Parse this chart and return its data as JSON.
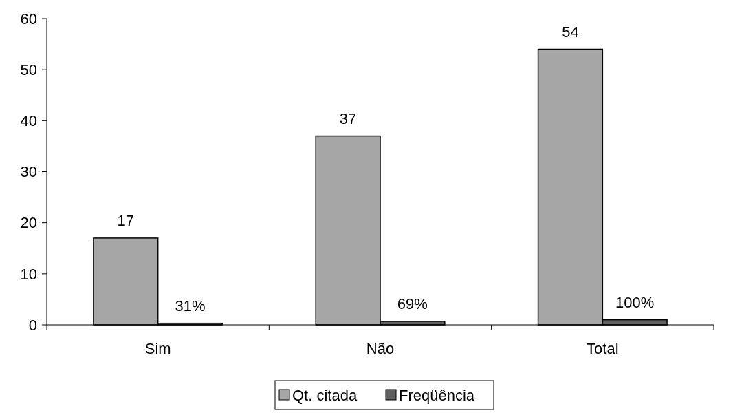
{
  "chart_data": {
    "type": "bar",
    "categories": [
      "Sim",
      "Não",
      "Total"
    ],
    "series": [
      {
        "name": "Qt. citada",
        "color": "#a6a6a6",
        "values": [
          17,
          37,
          54
        ],
        "value_labels": [
          "17",
          "37",
          "54"
        ]
      },
      {
        "name": "Freqüência",
        "color": "#5f5f5f",
        "values": [
          0.31,
          0.69,
          1
        ],
        "value_labels": [
          "31%",
          "69%",
          "100%"
        ]
      }
    ],
    "ylim": [
      0,
      60
    ],
    "yticks": [
      0,
      10,
      20,
      30,
      40,
      50,
      60
    ],
    "grid": false,
    "legend": "bottom"
  }
}
